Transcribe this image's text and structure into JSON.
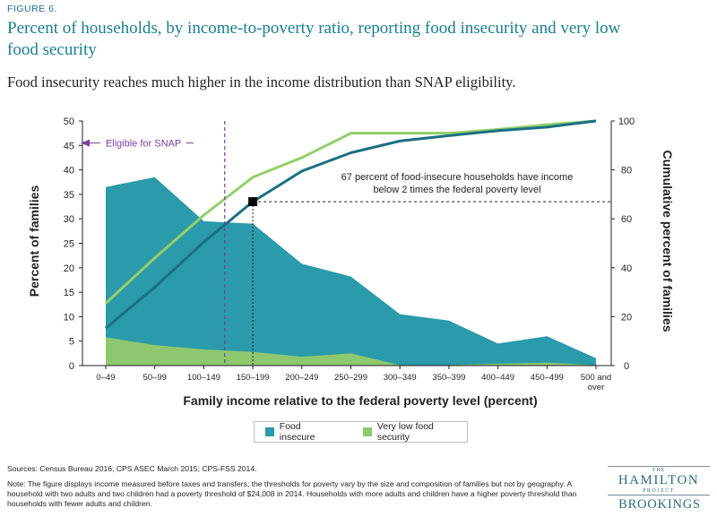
{
  "figure_label": "FIGURE 6.",
  "title": "Percent of households, by income-to-poverty ratio, reporting food insecurity and very low food security",
  "subtitle": "Food insecurity reaches much higher in the income distribution than SNAP eligibility.",
  "colors": {
    "food_insecure_area": "#2b9aaa",
    "very_low_area": "#8dc86f",
    "food_insecure_cum_line": "#1b6f83",
    "very_low_cum_line": "#93cf6b",
    "snap_line": "#7b3fa0",
    "title": "#1a7f91"
  },
  "chart_data": {
    "type": "area",
    "categories": [
      "0–49",
      "50–99",
      "100–149",
      "150–199",
      "200–249",
      "250–299",
      "300–349",
      "350–399",
      "400–449",
      "450–499",
      "500 and over"
    ],
    "x_tick_labels": [
      [
        "0–49"
      ],
      [
        "50–99"
      ],
      [
        "100–149"
      ],
      [
        "150–199"
      ],
      [
        "200–249"
      ],
      [
        "250–299"
      ],
      [
        "300–349"
      ],
      [
        "350–399"
      ],
      [
        "400–449"
      ],
      [
        "450–499"
      ],
      [
        "500 and",
        "over"
      ]
    ],
    "xlabel": "Family income relative to the federal poverty level (percent)",
    "ylabel": "Percent of families",
    "y2label": "Cumulative percent of families",
    "ylim": [
      0,
      50
    ],
    "y2lim": [
      0,
      100
    ],
    "yticks": [
      0,
      5,
      10,
      15,
      20,
      25,
      30,
      35,
      40,
      45,
      50
    ],
    "y2ticks": [
      0,
      20,
      40,
      60,
      80,
      100
    ],
    "grid": false,
    "legend_position": "bottom",
    "series": [
      {
        "name": "Food insecure",
        "kind": "area",
        "axis": "left",
        "values": [
          36.5,
          38.5,
          29.5,
          29.0,
          20.8,
          18.2,
          10.5,
          9.2,
          4.5,
          6.0,
          1.5
        ]
      },
      {
        "name": "Very low food security",
        "kind": "area",
        "axis": "left",
        "values": [
          5.8,
          4.2,
          3.3,
          2.8,
          1.8,
          2.5,
          0.1,
          0.1,
          0.4,
          0.6,
          0.1
        ]
      },
      {
        "kind": "line",
        "axis": "right",
        "color_key": "food_insecure_cum_line",
        "values": [
          15.3,
          32.0,
          50.5,
          67.0,
          79.5,
          87.0,
          91.8,
          94.0,
          96.0,
          97.5,
          100.0
        ]
      },
      {
        "kind": "line",
        "axis": "right",
        "color_key": "very_low_cum_line",
        "values": [
          25.5,
          44.0,
          61.5,
          77.0,
          85.0,
          95.0,
          95.0,
          95.0,
          96.5,
          98.5,
          100.0
        ]
      }
    ],
    "annotations": {
      "snap_label": "Eligible for SNAP",
      "snap_category_boundary": 2.5,
      "marker_category": 3,
      "marker_value": 67,
      "note_lines": [
        "67 percent of food-insecure households have income",
        "below 2 times the federal poverty level"
      ]
    }
  },
  "legend": [
    {
      "label": "Food insecure",
      "color": "#2b9aaa"
    },
    {
      "label": "Very low food security",
      "color": "#8dc86f"
    }
  ],
  "footnotes": {
    "sources": "Sources: Census Bureau 2016; CPS ASEC March 2015; CPS-FSS 2014.",
    "note": "Note: The figure displays income measured before taxes and transfers; the thresholds for poverty vary by the size and composition of families but not by geography. A household with two adults and two children had a poverty threshold of $24,008 in 2014. Households with more adults and children have a higher poverty threshold than households with fewer adults and children."
  },
  "logo": {
    "the": "THE",
    "name": "HAMILTON",
    "project": "PROJECT",
    "org": "BROOKINGS"
  }
}
